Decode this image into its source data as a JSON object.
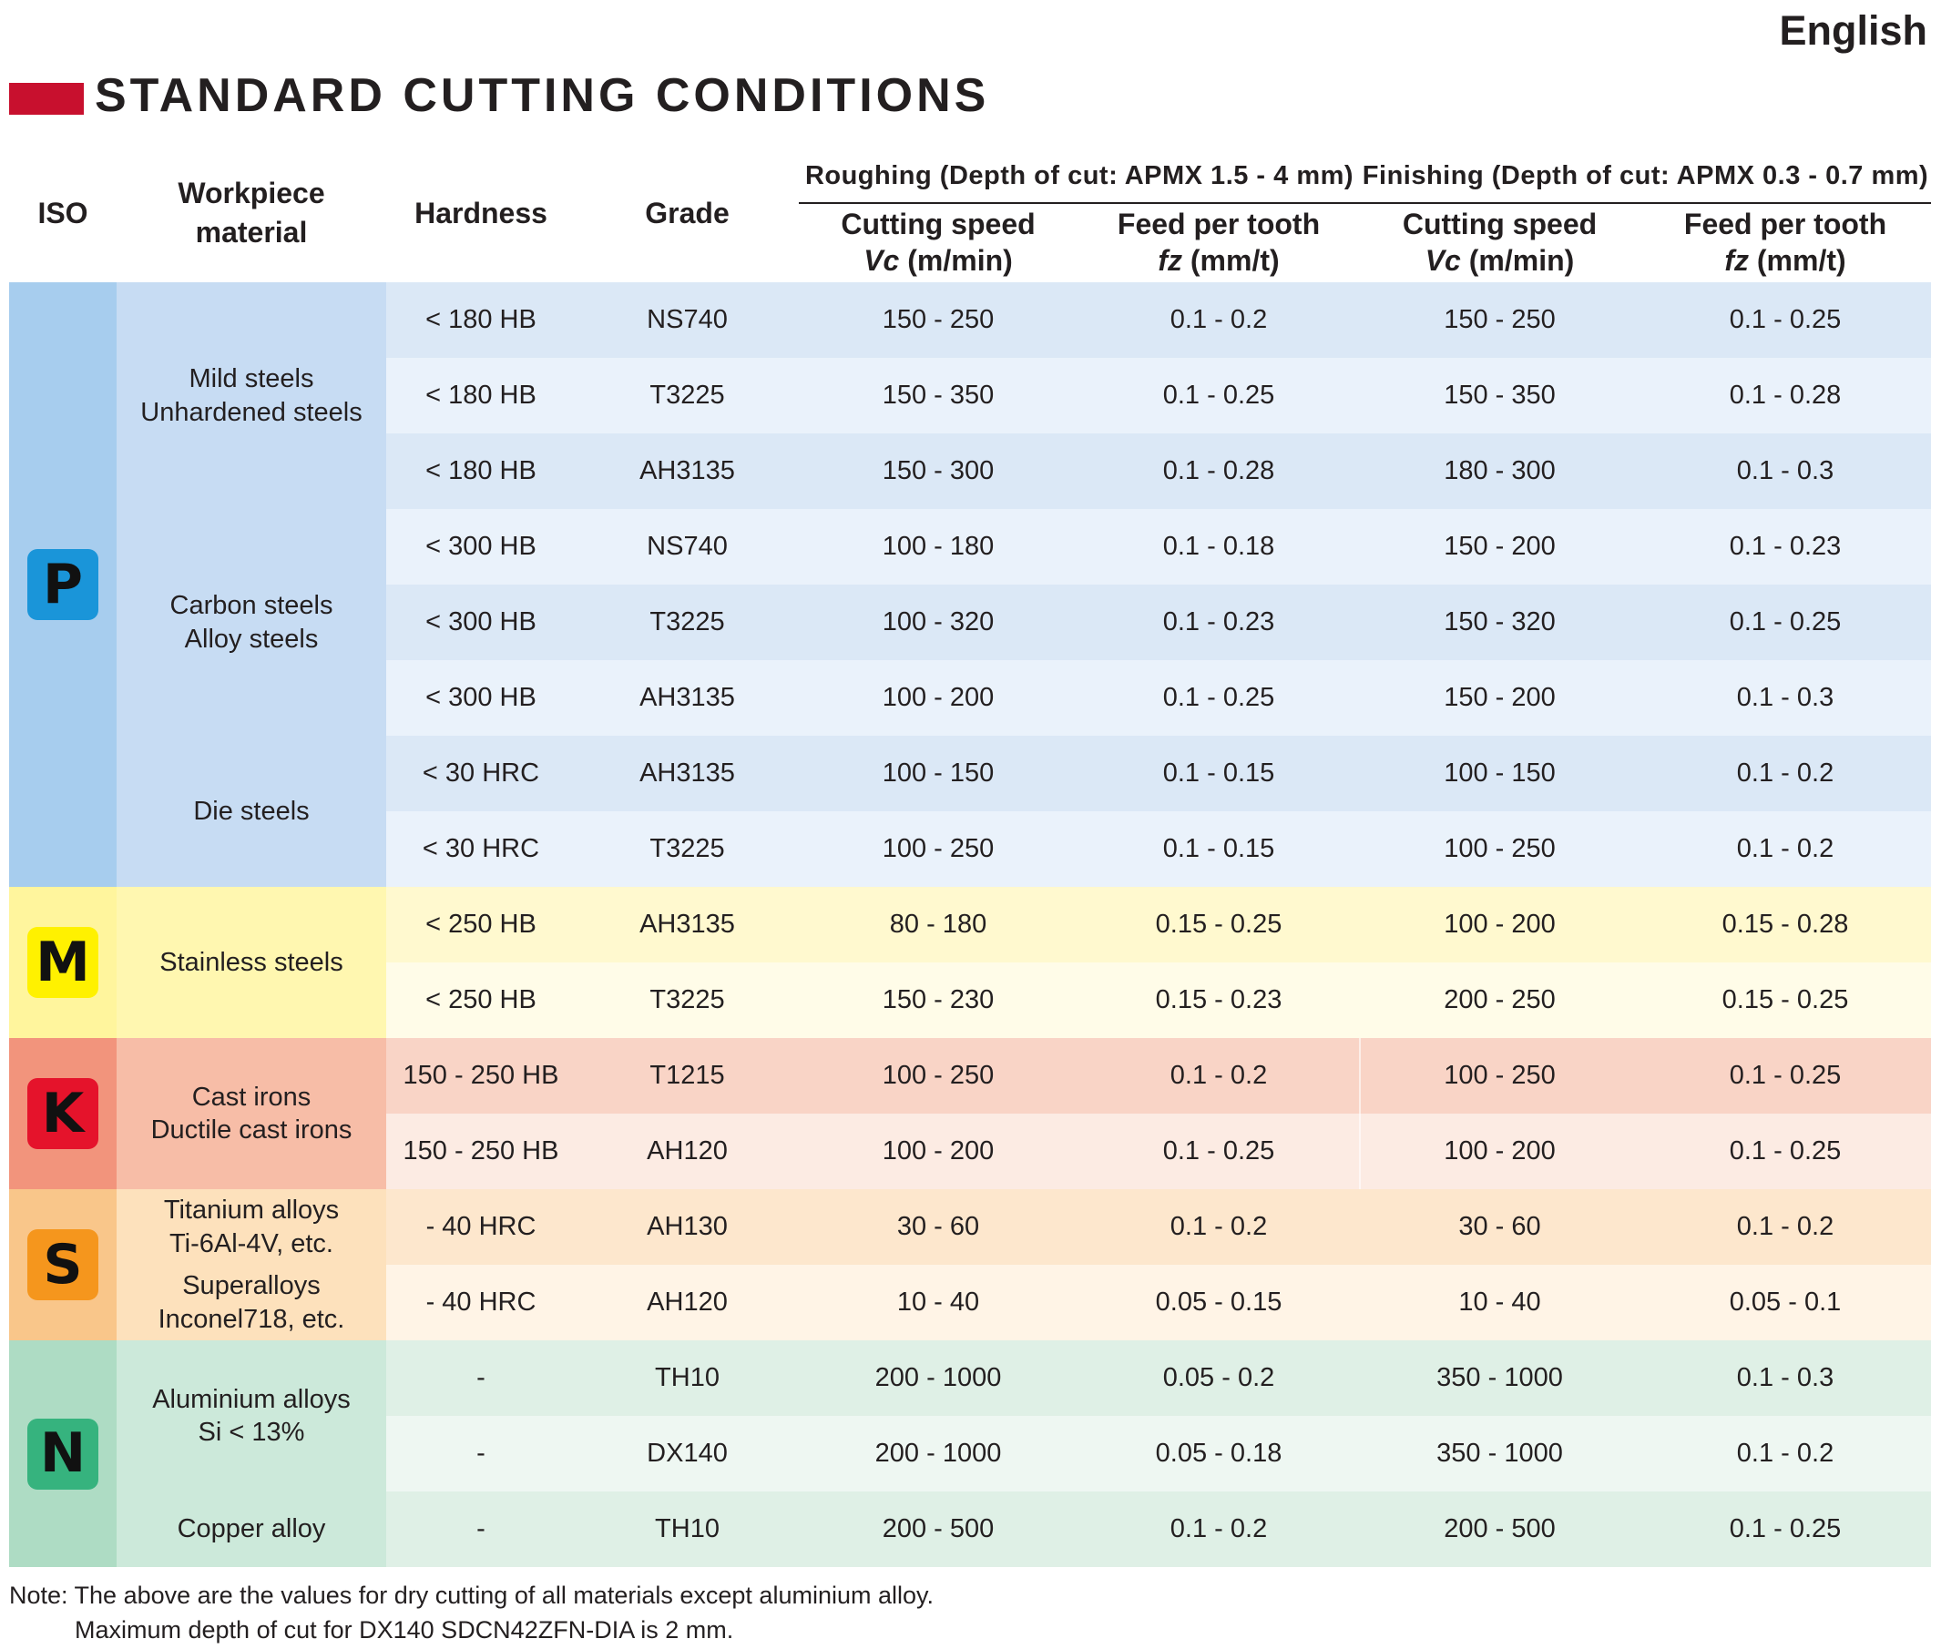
{
  "page": {
    "language_label": "English",
    "title": "STANDARD CUTTING CONDITIONS",
    "title_accent_color": "#c8102e"
  },
  "table": {
    "headers": {
      "iso": "ISO",
      "workpiece": "Workpiece\nmaterial",
      "hardness": "Hardness",
      "grade": "Grade",
      "roughing": "Roughing (Depth of cut: APMX 1.5 - 4 mm)",
      "finishing": "Finishing (Depth of cut: APMX 0.3 - 0.7 mm)",
      "cutting_speed_line1": "Cutting speed",
      "cutting_speed_line2": "Vc (m/min)",
      "feed_line1": "Feed per tooth",
      "feed_line2": "fz (mm/t)"
    },
    "groups": [
      {
        "iso": "P",
        "badge_color": "#1a95d9",
        "iso_bg": "#a7cdee",
        "mat_bg": "#c7dcf3",
        "row_bg_a": "#dbe8f6",
        "row_bg_b": "#eaf2fb",
        "rows": 8
      },
      {
        "iso": "M",
        "badge_color": "#fff100",
        "iso_bg": "#fff59d",
        "mat_bg": "#fff7b0",
        "row_bg_a": "#fff9cf",
        "row_bg_b": "#fffce8",
        "rows": 2
      },
      {
        "iso": "K",
        "badge_color": "#e5132b",
        "iso_bg": "#f2947c",
        "mat_bg": "#f7bda7",
        "row_bg_a": "#f9d4c6",
        "row_bg_b": "#fcebe3",
        "rows": 2
      },
      {
        "iso": "S",
        "badge_color": "#f5961d",
        "iso_bg": "#f9c68a",
        "mat_bg": "#fde1bc",
        "row_bg_a": "#fde7cd",
        "row_bg_b": "#fff4e6",
        "rows": 2
      },
      {
        "iso": "N",
        "badge_color": "#36b37e",
        "iso_bg": "#aedcc4",
        "mat_bg": "#cce9da",
        "row_bg_a": "#dff0e6",
        "row_bg_b": "#eef7f2",
        "rows": 3
      }
    ],
    "materials": [
      {
        "name": "Mild steels\nUnhardened steels",
        "rows": 3
      },
      {
        "name": "Carbon steels\nAlloy steels",
        "rows": 3
      },
      {
        "name": "Die steels",
        "rows": 2
      },
      {
        "name": "Stainless steels",
        "rows": 2
      },
      {
        "name": "Cast irons\nDuctile cast irons",
        "rows": 2
      },
      {
        "name": "Titanium alloys\nTi-6Al-4V, etc.",
        "rows": 1
      },
      {
        "name": "Superalloys\nInconel718, etc.",
        "rows": 1
      },
      {
        "name": "Aluminium alloys\nSi < 13%",
        "rows": 2
      },
      {
        "name": "Copper alloy",
        "rows": 1
      }
    ],
    "rows": [
      {
        "hardness": "< 180 HB",
        "grade": "NS740",
        "r_vc": "150 - 250",
        "r_fz": "0.1 - 0.2",
        "f_vc": "150 - 250",
        "f_fz": "0.1 - 0.25"
      },
      {
        "hardness": "< 180 HB",
        "grade": "T3225",
        "r_vc": "150 - 350",
        "r_fz": "0.1 - 0.25",
        "f_vc": "150 - 350",
        "f_fz": "0.1 - 0.28"
      },
      {
        "hardness": "< 180 HB",
        "grade": "AH3135",
        "r_vc": "150 - 300",
        "r_fz": "0.1 - 0.28",
        "f_vc": "180 - 300",
        "f_fz": "0.1 - 0.3"
      },
      {
        "hardness": "< 300 HB",
        "grade": "NS740",
        "r_vc": "100 - 180",
        "r_fz": "0.1 - 0.18",
        "f_vc": "150 - 200",
        "f_fz": "0.1 - 0.23"
      },
      {
        "hardness": "< 300 HB",
        "grade": "T3225",
        "r_vc": "100 - 320",
        "r_fz": "0.1 - 0.23",
        "f_vc": "150 - 320",
        "f_fz": "0.1 - 0.25"
      },
      {
        "hardness": "< 300 HB",
        "grade": "AH3135",
        "r_vc": "100 - 200",
        "r_fz": "0.1 - 0.25",
        "f_vc": "150 - 200",
        "f_fz": "0.1 - 0.3"
      },
      {
        "hardness": "< 30 HRC",
        "grade": "AH3135",
        "r_vc": "100 - 150",
        "r_fz": "0.1 - 0.15",
        "f_vc": "100 - 150",
        "f_fz": "0.1 - 0.2"
      },
      {
        "hardness": "< 30 HRC",
        "grade": "T3225",
        "r_vc": "100 - 250",
        "r_fz": "0.1 - 0.15",
        "f_vc": "100 - 250",
        "f_fz": "0.1 - 0.2"
      },
      {
        "hardness": "< 250 HB",
        "grade": "AH3135",
        "r_vc": "80 - 180",
        "r_fz": "0.15 - 0.25",
        "f_vc": "100 - 200",
        "f_fz": "0.15 - 0.28"
      },
      {
        "hardness": "< 250 HB",
        "grade": "T3225",
        "r_vc": "150 - 230",
        "r_fz": "0.15 - 0.23",
        "f_vc": "200 - 250",
        "f_fz": "0.15 - 0.25"
      },
      {
        "hardness": "150 - 250 HB",
        "grade": "T1215",
        "r_vc": "100 - 250",
        "r_fz": "0.1 - 0.2",
        "f_vc": "100 - 250",
        "f_fz": "0.1 - 0.25"
      },
      {
        "hardness": "150 - 250 HB",
        "grade": "AH120",
        "r_vc": "100 - 200",
        "r_fz": "0.1 - 0.25",
        "f_vc": "100 - 200",
        "f_fz": "0.1 - 0.25"
      },
      {
        "hardness": "- 40 HRC",
        "grade": "AH130",
        "r_vc": "30 - 60",
        "r_fz": "0.1 - 0.2",
        "f_vc": "30 - 60",
        "f_fz": "0.1 - 0.2"
      },
      {
        "hardness": "- 40 HRC",
        "grade": "AH120",
        "r_vc": "10 - 40",
        "r_fz": "0.05 - 0.15",
        "f_vc": "10 - 40",
        "f_fz": "0.05 - 0.1"
      },
      {
        "hardness": "-",
        "grade": "TH10",
        "r_vc": "200 - 1000",
        "r_fz": "0.05 - 0.2",
        "f_vc": "350 - 1000",
        "f_fz": "0.1 - 0.3"
      },
      {
        "hardness": "-",
        "grade": "DX140",
        "r_vc": "200 - 1000",
        "r_fz": "0.05 - 0.18",
        "f_vc": "350 - 1000",
        "f_fz": "0.1 - 0.2"
      },
      {
        "hardness": "-",
        "grade": "TH10",
        "r_vc": "200 - 500",
        "r_fz": "0.1 - 0.2",
        "f_vc": "200 - 500",
        "f_fz": "0.1 - 0.25"
      }
    ]
  },
  "note": {
    "line1": "Note: The above are the values for dry cutting of all materials except aluminium alloy.",
    "line2": "Maximum depth of cut for DX140 SDCN42ZFN-DIA is 2 mm."
  }
}
